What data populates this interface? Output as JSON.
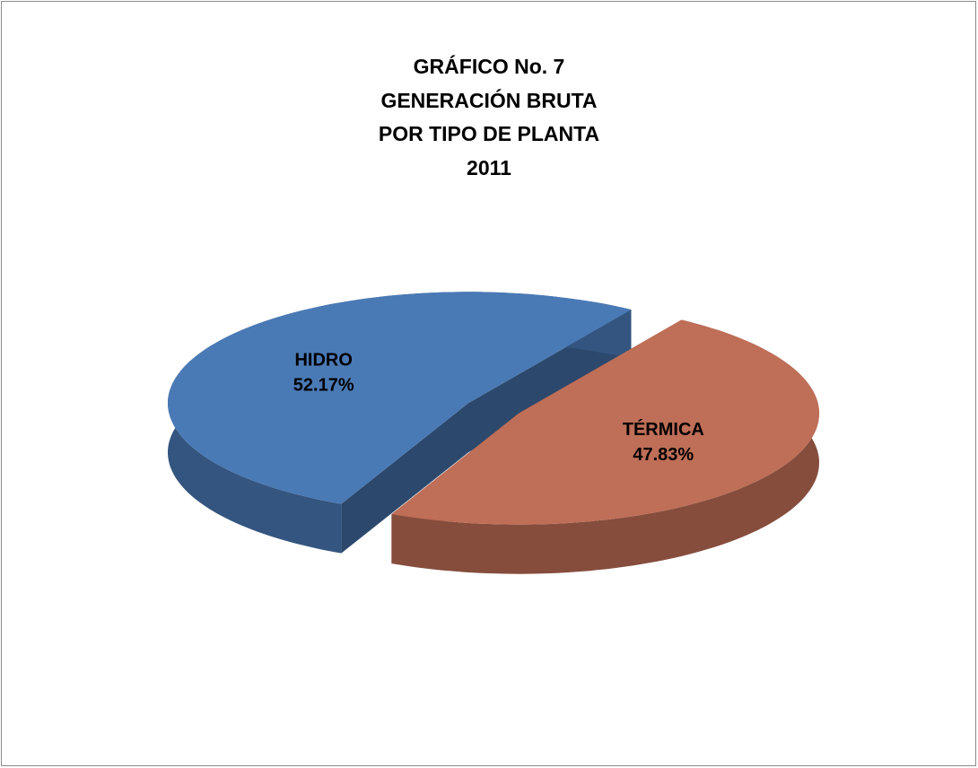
{
  "chart_data": {
    "type": "pie3d",
    "title": [
      "GRÁFICO No. 7",
      "GENERACIÓN BRUTA",
      "POR TIPO DE PLANTA",
      "2011"
    ],
    "categories": [
      "HIDRO",
      "TÉRMICA"
    ],
    "values": [
      52.17,
      47.83
    ],
    "value_labels": [
      "52.17%",
      "47.83%"
    ],
    "colors": [
      "#4a7ab5",
      "#bf6e57"
    ]
  }
}
